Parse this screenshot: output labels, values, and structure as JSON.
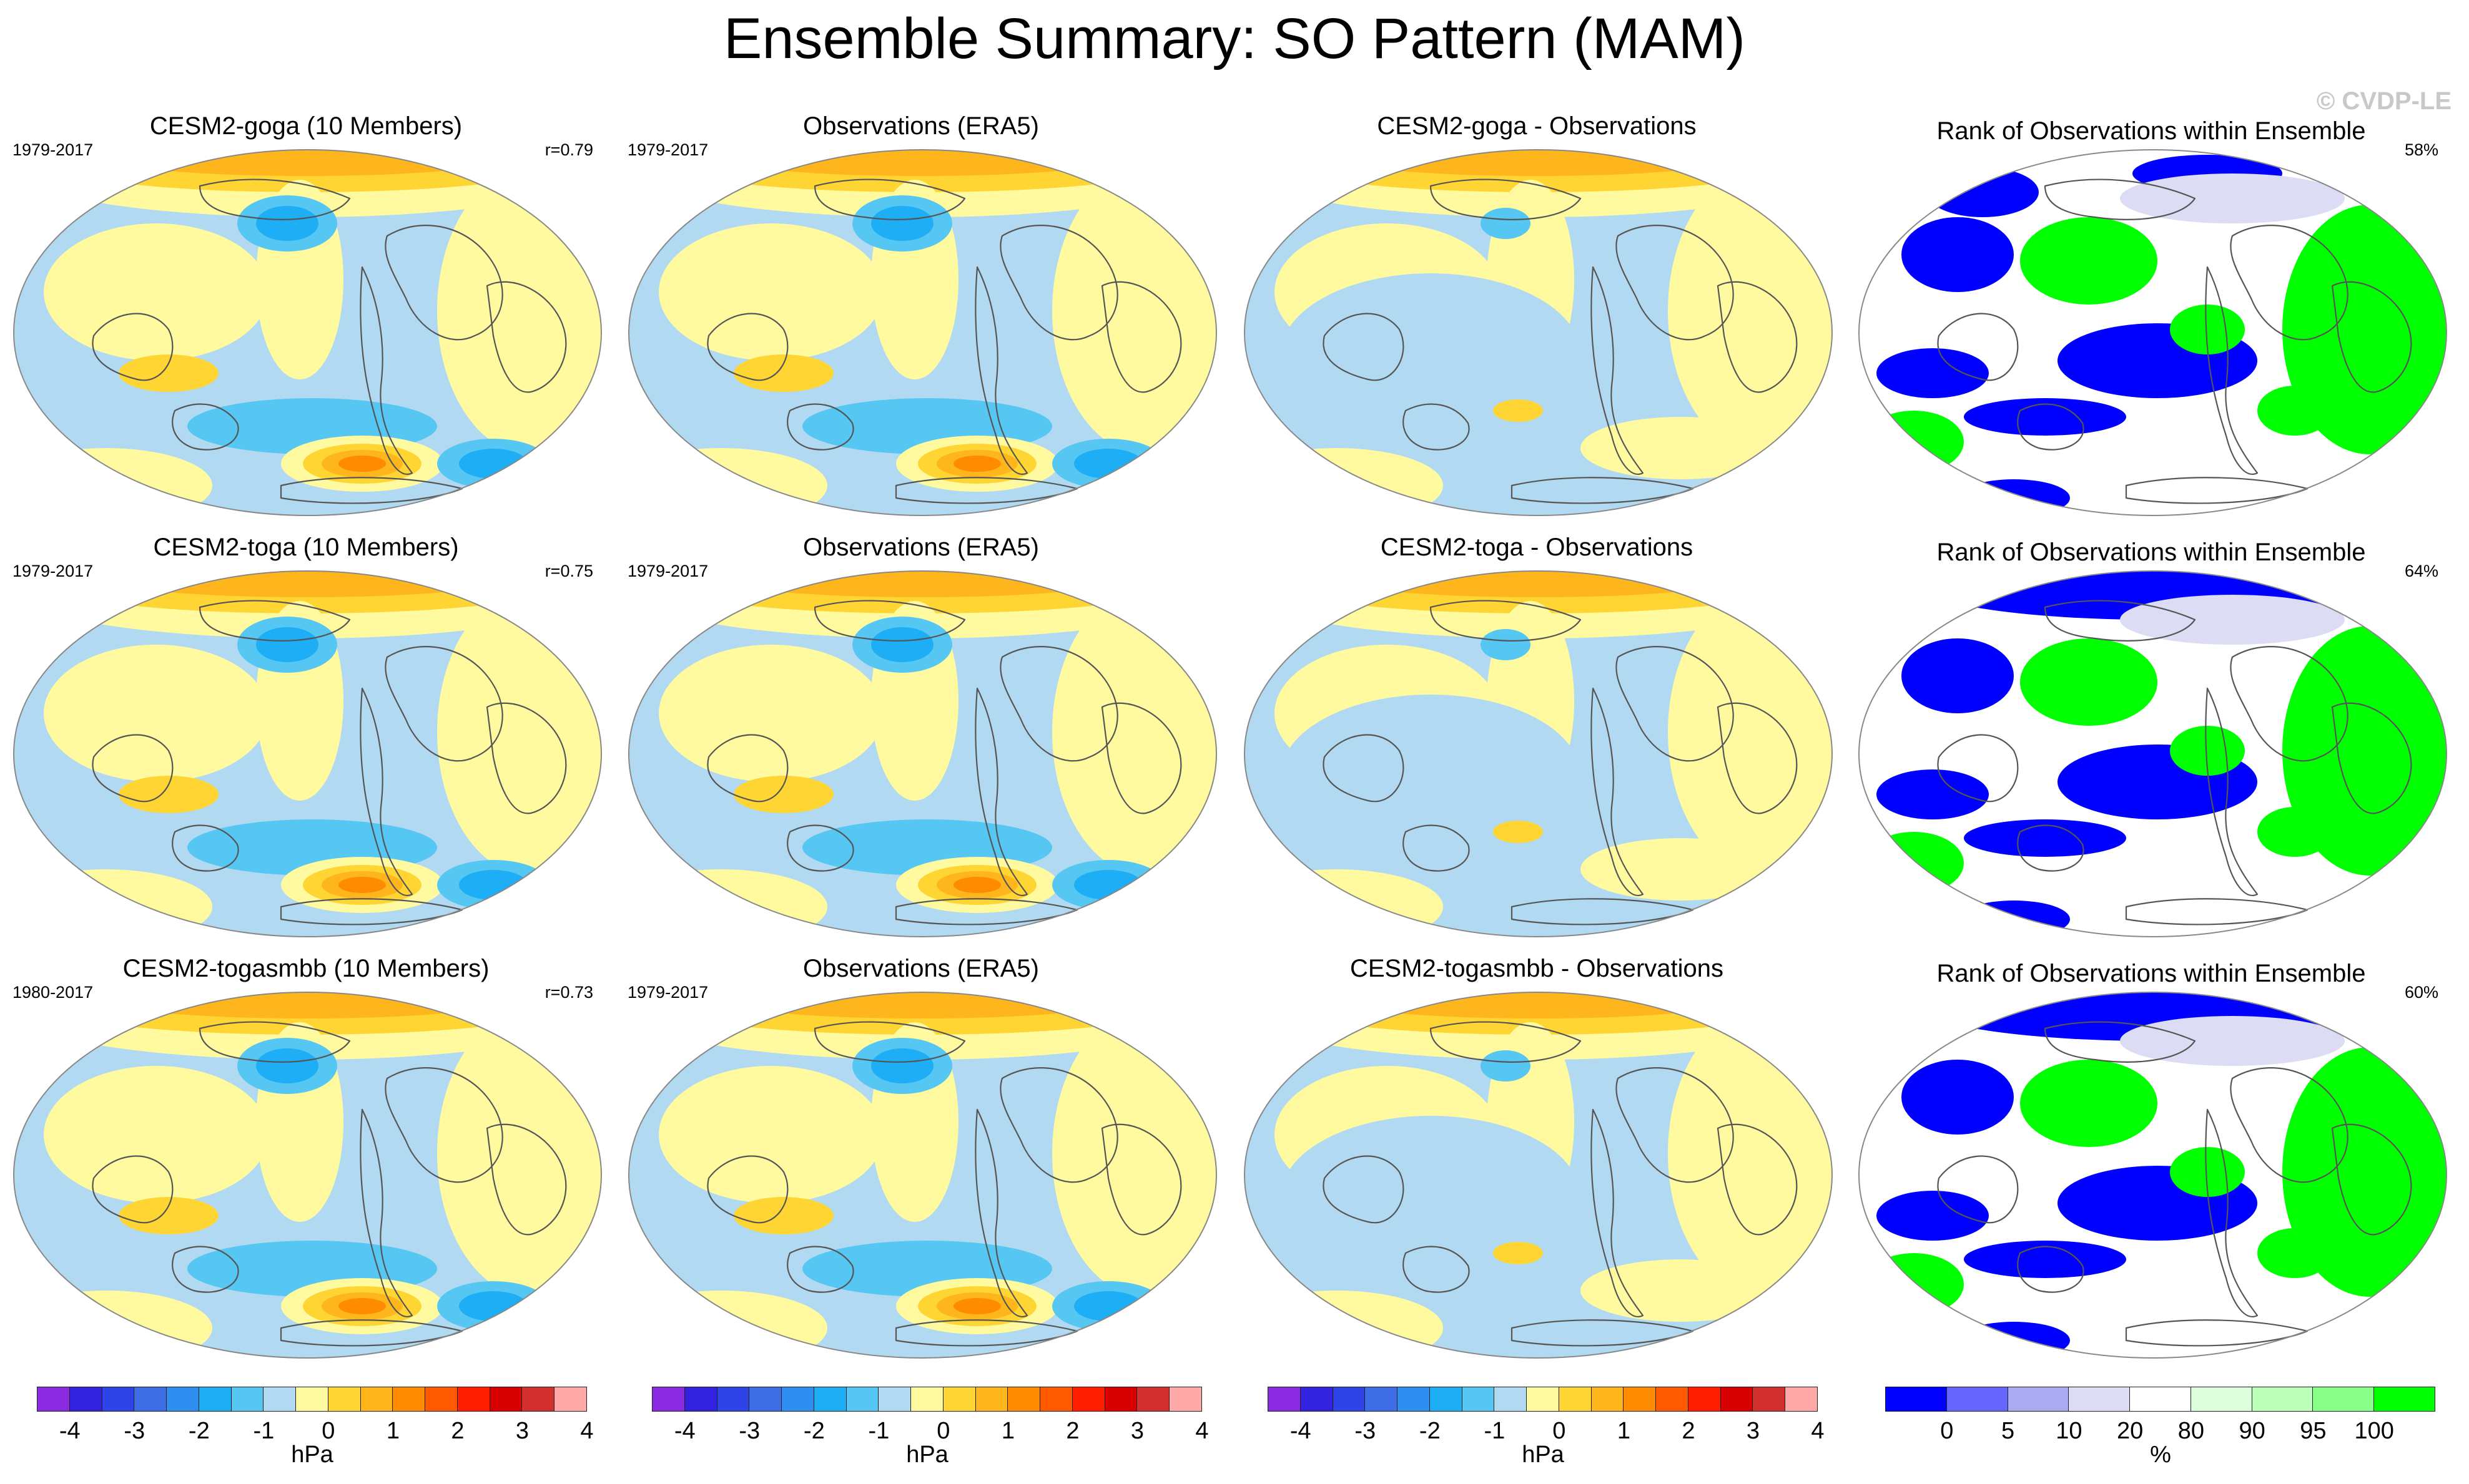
{
  "title": "Ensemble Summary: SO Pattern (MAM)",
  "watermark": "© CVDP-LE",
  "columns": [
    "model",
    "observations",
    "difference",
    "rank"
  ],
  "rows": [
    {
      "model": {
        "title": "CESM2-goga (10 Members)",
        "period": "1979-2017",
        "corr": "r=0.79"
      },
      "obs": {
        "title": "Observations (ERA5)",
        "period": "1979-2017"
      },
      "diff": {
        "title": "CESM2-goga - Observations"
      },
      "rank": {
        "title": "Rank of Observations within Ensemble",
        "pct": "58%"
      }
    },
    {
      "model": {
        "title": "CESM2-toga (10 Members)",
        "period": "1979-2017",
        "corr": "r=0.75"
      },
      "obs": {
        "title": "Observations (ERA5)",
        "period": "1979-2017"
      },
      "diff": {
        "title": "CESM2-toga - Observations"
      },
      "rank": {
        "title": "Rank of Observations within Ensemble",
        "pct": "64%"
      }
    },
    {
      "model": {
        "title": "CESM2-togasmbb (10 Members)",
        "period": "1980-2017",
        "corr": "r=0.73"
      },
      "obs": {
        "title": "Observations (ERA5)",
        "period": "1979-2017"
      },
      "diff": {
        "title": "CESM2-togasmbb - Observations"
      },
      "rank": {
        "title": "Rank of Observations within Ensemble",
        "pct": "60%"
      }
    }
  ],
  "colorbar_hpa": {
    "units": "hPa",
    "ticks": [
      "-4",
      "-3",
      "-2",
      "-1",
      "0",
      "1",
      "2",
      "3",
      "4"
    ],
    "colors": [
      "#8a2be2",
      "#3322e0",
      "#2e43e8",
      "#3d6ee6",
      "#2f8ff0",
      "#1eaef5",
      "#56c6f2",
      "#b1daf2",
      "#fffaa0",
      "#ffd534",
      "#ffb51c",
      "#ff8c00",
      "#ff5a00",
      "#ff1e00",
      "#d80000",
      "#d22f2f",
      "#ffa8a8"
    ]
  },
  "colorbar_rank": {
    "units": "%",
    "ticks": [
      "0",
      "5",
      "10",
      "20",
      "80",
      "90",
      "95",
      "100"
    ],
    "colors": [
      "#0000ff",
      "#6666ff",
      "#aaaaf0",
      "#dcdcf5",
      "#ffffff",
      "#ddffdd",
      "#bbffbb",
      "#88ff88",
      "#00ff00"
    ]
  },
  "palette": {
    "pos1": "#fffaa0",
    "pos2": "#ffd534",
    "pos3": "#ffb51c",
    "pos4": "#ff8c00",
    "pos5": "#ff5a00",
    "neg1": "#b1daf2",
    "neg2": "#56c6f2",
    "neg3": "#1eaef5",
    "neg4": "#2f8ff0",
    "rank_low": "#0000ff",
    "rank_mid": "#dcdcf5",
    "rank_high": "#00ff00",
    "coast": "#555555"
  }
}
